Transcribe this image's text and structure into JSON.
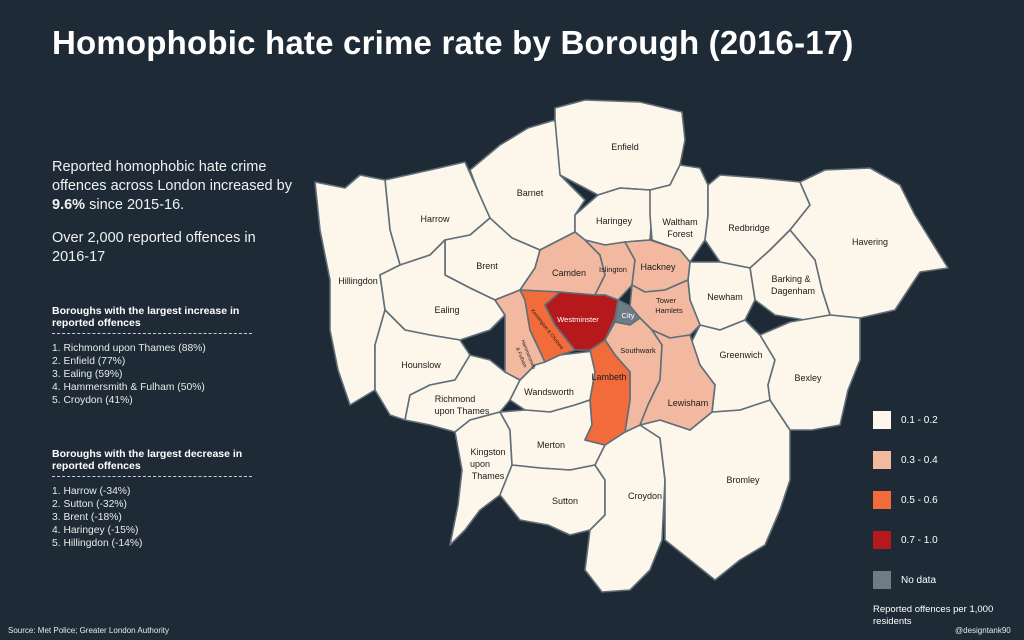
{
  "title": "Homophobic hate crime rate by Borough (2016-17)",
  "intro": {
    "pre": "Reported homophobic hate crime offences across London increased by ",
    "highlight": "9.6%",
    "post": " since 2015-16.",
    "second": "Over 2,000 reported offences in 2016-17"
  },
  "increase": {
    "title": "Boroughs with the largest increase in reported offences",
    "items": [
      "1. Richmond upon Thames (88%)",
      "2. Enfield (77%)",
      "3. Ealing (59%)",
      "4. Hammersmith & Fulham (50%)",
      "5. Croydon (41%)"
    ]
  },
  "decrease": {
    "title": "Boroughs with the largest decrease in reported offences",
    "items": [
      "1. Harrow (-34%)",
      "2. Sutton (-32%)",
      "3. Brent (-18%)",
      "4. Haringey (-15%)",
      "5. Hillingdon (-14%)"
    ]
  },
  "legend": {
    "items": [
      {
        "label": "0.1 - 0.2",
        "color": "#fdf6ea"
      },
      {
        "label": "0.3 - 0.4",
        "color": "#f3b9a0"
      },
      {
        "label": "0.5 - 0.6",
        "color": "#f26b3a"
      },
      {
        "label": "0.7 - 1.0",
        "color": "#b5191b"
      },
      {
        "label": "No data",
        "color": "#6e7c86"
      }
    ],
    "note": "Reported offences per 1,000 residents"
  },
  "boroughs": [
    {
      "id": "enfield",
      "label": "Enfield",
      "band": "0.1 - 0.2"
    },
    {
      "id": "barnet",
      "label": "Barnet",
      "band": "0.1 - 0.2"
    },
    {
      "id": "harrow",
      "label": "Harrow",
      "band": "0.1 - 0.2"
    },
    {
      "id": "hillingdon",
      "label": "Hillingdon",
      "band": "0.1 - 0.2"
    },
    {
      "id": "brent",
      "label": "Brent",
      "band": "0.1 - 0.2"
    },
    {
      "id": "haringey",
      "label": "Haringey",
      "band": "0.1 - 0.2"
    },
    {
      "id": "waltham-forest",
      "label": "Waltham Forest",
      "band": "0.1 - 0.2"
    },
    {
      "id": "redbridge",
      "label": "Redbridge",
      "band": "0.1 - 0.2"
    },
    {
      "id": "havering",
      "label": "Havering",
      "band": "0.1 - 0.2"
    },
    {
      "id": "barking-dagenham",
      "label": "Barking & Dagenham",
      "band": "0.1 - 0.2"
    },
    {
      "id": "newham",
      "label": "Newham",
      "band": "0.1 - 0.2"
    },
    {
      "id": "ealing",
      "label": "Ealing",
      "band": "0.1 - 0.2"
    },
    {
      "id": "hounslow",
      "label": "Hounslow",
      "band": "0.1 - 0.2"
    },
    {
      "id": "richmond",
      "label": "Richmond upon Thames",
      "band": "0.1 - 0.2"
    },
    {
      "id": "kingston",
      "label": "Kingston upon Thames",
      "band": "0.1 - 0.2"
    },
    {
      "id": "wandsworth",
      "label": "Wandsworth",
      "band": "0.1 - 0.2"
    },
    {
      "id": "merton",
      "label": "Merton",
      "band": "0.1 - 0.2"
    },
    {
      "id": "sutton",
      "label": "Sutton",
      "band": "0.1 - 0.2"
    },
    {
      "id": "croydon",
      "label": "Croydon",
      "band": "0.1 - 0.2"
    },
    {
      "id": "bromley",
      "label": "Bromley",
      "band": "0.1 - 0.2"
    },
    {
      "id": "greenwich",
      "label": "Greenwich",
      "band": "0.1 - 0.2"
    },
    {
      "id": "bexley",
      "label": "Bexley",
      "band": "0.1 - 0.2"
    },
    {
      "id": "camden",
      "label": "Camden",
      "band": "0.3 - 0.4"
    },
    {
      "id": "islington",
      "label": "Islington",
      "band": "0.3 - 0.4"
    },
    {
      "id": "hackney",
      "label": "Hackney",
      "band": "0.3 - 0.4"
    },
    {
      "id": "tower-hamlets",
      "label": "Tower Hamlets",
      "band": "0.3 - 0.4"
    },
    {
      "id": "hammersmith-fulham",
      "label": "Hammersmith & Fulham",
      "band": "0.3 - 0.4"
    },
    {
      "id": "southwark",
      "label": "Southwark",
      "band": "0.3 - 0.4"
    },
    {
      "id": "lewisham",
      "label": "Lewisham",
      "band": "0.3 - 0.4"
    },
    {
      "id": "kensington-chelsea",
      "label": "Kensington & Chelsea",
      "band": "0.5 - 0.6"
    },
    {
      "id": "lambeth",
      "label": "Lambeth",
      "band": "0.5 - 0.6"
    },
    {
      "id": "westminster",
      "label": "Westminster",
      "band": "0.7 - 1.0"
    },
    {
      "id": "city",
      "label": "City",
      "band": "No data"
    }
  ],
  "source": "Source: Met Police; Greater London Authority",
  "credit": "@designtank90"
}
